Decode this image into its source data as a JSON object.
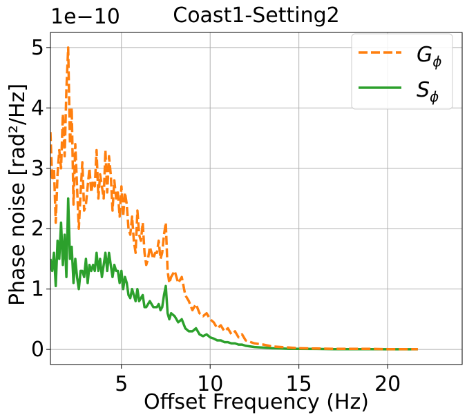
{
  "chart_data": {
    "type": "line",
    "title": "Coast1-Setting2",
    "xlabel": "Offset Frequency (Hz)",
    "ylabel": "Phase noise [rad²/Hz]",
    "y_offset_label": "1e−10",
    "xlim": [
      1,
      24.2
    ],
    "ylim": [
      -0.25,
      5.25
    ],
    "y_scale_factor": 1e-10,
    "xticks": [
      5,
      10,
      15,
      20
    ],
    "xtick_labels": [
      "5",
      "10",
      "15",
      "20"
    ],
    "yticks": [
      0,
      1,
      2,
      3,
      4,
      5
    ],
    "ytick_labels": [
      "0",
      "1",
      "2",
      "3",
      "4",
      "5"
    ],
    "grid": true,
    "legend_position": "top-right",
    "series": [
      {
        "name": "G_ϕ",
        "legend_base": "G",
        "legend_sub": "ϕ",
        "color": "#ff7f0e",
        "style": "dashed",
        "x": [
          1.0,
          1.1,
          1.2,
          1.3,
          1.4,
          1.5,
          1.6,
          1.7,
          1.8,
          1.9,
          2.0,
          2.1,
          2.2,
          2.3,
          2.4,
          2.5,
          2.6,
          2.7,
          2.8,
          2.9,
          3.0,
          3.1,
          3.2,
          3.3,
          3.4,
          3.5,
          3.6,
          3.7,
          3.8,
          3.9,
          4.0,
          4.1,
          4.2,
          4.3,
          4.4,
          4.5,
          4.6,
          4.7,
          4.8,
          4.9,
          5.0,
          5.1,
          5.2,
          5.3,
          5.4,
          5.5,
          5.6,
          5.7,
          5.8,
          5.9,
          6.0,
          6.1,
          6.2,
          6.3,
          6.4,
          6.5,
          6.6,
          6.7,
          6.8,
          6.9,
          7.0,
          7.1,
          7.2,
          7.3,
          7.4,
          7.5,
          7.6,
          7.7,
          7.8,
          8.0,
          8.2,
          8.4,
          8.6,
          8.8,
          9.0,
          9.2,
          9.4,
          9.6,
          9.8,
          10.0,
          10.2,
          10.4,
          10.6,
          10.8,
          11.0,
          11.2,
          11.4,
          11.6,
          11.8,
          12.0,
          12.5,
          13.0,
          13.5,
          14.0,
          14.5,
          15.0,
          16.0,
          17.0,
          18.0,
          19.0,
          20.0,
          21.0,
          21.7
        ],
        "values": [
          3.6,
          2.8,
          3.0,
          2.1,
          2.9,
          3.3,
          3.0,
          3.9,
          3.2,
          4.3,
          5.0,
          3.4,
          4.0,
          2.4,
          3.4,
          2.7,
          2.0,
          2.6,
          3.1,
          2.3,
          2.4,
          2.7,
          3.0,
          2.6,
          2.8,
          2.7,
          3.3,
          2.5,
          2.9,
          2.7,
          2.5,
          3.3,
          2.6,
          3.2,
          2.9,
          2.3,
          2.8,
          2.5,
          2.6,
          2.2,
          2.7,
          2.2,
          2.6,
          2.4,
          2.0,
          1.9,
          2.2,
          1.8,
          1.6,
          2.3,
          1.9,
          1.8,
          2.1,
          1.6,
          1.4,
          1.5,
          1.7,
          1.6,
          1.5,
          1.6,
          1.6,
          1.8,
          1.5,
          1.6,
          1.9,
          2.1,
          1.3,
          1.1,
          1.2,
          1.3,
          1.1,
          1.2,
          0.9,
          0.8,
          0.65,
          0.75,
          0.6,
          0.55,
          0.6,
          0.5,
          0.45,
          0.35,
          0.4,
          0.3,
          0.35,
          0.25,
          0.3,
          0.2,
          0.25,
          0.15,
          0.1,
          0.08,
          0.05,
          0.04,
          0.03,
          0.02,
          0.015,
          0.01,
          0.01,
          0.01,
          0.005,
          0.005,
          0.005
        ]
      },
      {
        "name": "S_ϕ",
        "legend_base": "S",
        "legend_sub": "ϕ",
        "color": "#2ca02c",
        "style": "solid",
        "x": [
          1.0,
          1.1,
          1.2,
          1.3,
          1.4,
          1.5,
          1.6,
          1.7,
          1.8,
          1.9,
          2.0,
          2.1,
          2.2,
          2.3,
          2.4,
          2.5,
          2.6,
          2.7,
          2.8,
          2.9,
          3.0,
          3.1,
          3.2,
          3.3,
          3.4,
          3.5,
          3.6,
          3.7,
          3.8,
          3.9,
          4.0,
          4.1,
          4.2,
          4.3,
          4.4,
          4.5,
          4.6,
          4.7,
          4.8,
          4.9,
          5.0,
          5.1,
          5.2,
          5.3,
          5.4,
          5.5,
          5.6,
          5.7,
          5.8,
          5.9,
          6.0,
          6.1,
          6.2,
          6.3,
          6.4,
          6.5,
          6.6,
          6.7,
          6.8,
          6.9,
          7.0,
          7.1,
          7.2,
          7.3,
          7.4,
          7.5,
          7.6,
          7.7,
          7.8,
          8.0,
          8.2,
          8.4,
          8.6,
          8.8,
          9.0,
          9.2,
          9.4,
          9.6,
          9.8,
          10.0,
          10.2,
          10.4,
          10.6,
          10.8,
          11.0,
          11.2,
          11.4,
          11.6,
          11.8,
          12.0,
          12.5,
          13.0,
          13.5,
          14.0,
          14.5,
          15.0,
          16.0,
          17.0,
          18.0,
          19.0,
          20.0,
          21.0,
          21.7
        ],
        "values": [
          1.5,
          1.3,
          1.6,
          1.05,
          1.8,
          1.5,
          2.1,
          1.4,
          1.9,
          1.2,
          2.5,
          1.5,
          1.7,
          1.1,
          1.5,
          1.2,
          1.0,
          1.3,
          1.3,
          1.2,
          1.5,
          1.1,
          1.4,
          1.3,
          1.4,
          1.3,
          1.6,
          1.3,
          1.5,
          1.2,
          1.4,
          1.6,
          1.3,
          1.6,
          1.4,
          1.2,
          1.4,
          1.3,
          1.3,
          1.1,
          1.3,
          1.0,
          1.2,
          1.1,
          0.9,
          0.85,
          1.0,
          0.9,
          0.8,
          1.0,
          0.8,
          0.85,
          0.9,
          0.7,
          0.7,
          0.75,
          0.8,
          0.75,
          0.7,
          0.7,
          0.7,
          0.75,
          0.65,
          0.7,
          0.9,
          1.05,
          0.6,
          0.5,
          0.6,
          0.55,
          0.45,
          0.5,
          0.35,
          0.3,
          0.3,
          0.35,
          0.25,
          0.22,
          0.25,
          0.2,
          0.18,
          0.15,
          0.15,
          0.12,
          0.12,
          0.1,
          0.1,
          0.08,
          0.08,
          0.06,
          0.04,
          0.03,
          0.02,
          0.015,
          0.01,
          0.01,
          0.008,
          0.005,
          0.005,
          0.005,
          0.003,
          0.003,
          0.003
        ]
      }
    ]
  }
}
